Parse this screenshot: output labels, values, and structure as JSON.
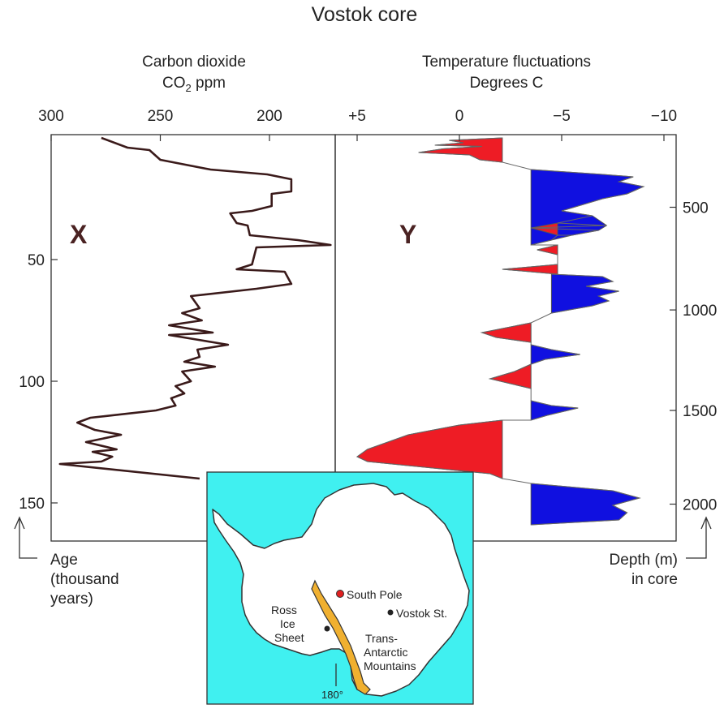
{
  "title": "Vostok core",
  "chart_data": [
    {
      "type": "line",
      "panel_label": "X",
      "xlabel_line1": "Carbon dioxide",
      "xlabel_line2_prefix": "CO",
      "xlabel_line2_sub": "2",
      "xlabel_line2_suffix": " ppm",
      "ylabel_lines": [
        "Age",
        "(thousand",
        "years)"
      ],
      "xlim": [
        300,
        170
      ],
      "ylim": [
        0,
        160
      ],
      "x_ticks": [
        {
          "v": 300,
          "label": "300"
        },
        {
          "v": 250,
          "label": "250"
        },
        {
          "v": 200,
          "label": "200"
        }
      ],
      "y_ticks": [
        {
          "v": 50,
          "label": "50"
        },
        {
          "v": 100,
          "label": "100"
        },
        {
          "v": 150,
          "label": "150"
        }
      ],
      "color": "#3a1a1a",
      "series": [
        {
          "points": [
            [
              277,
              0
            ],
            [
              265,
              4
            ],
            [
              255,
              5
            ],
            [
              250,
              9
            ],
            [
              227,
              13
            ],
            [
              201,
              15
            ],
            [
              190,
              17
            ],
            [
              190,
              22
            ],
            [
              199,
              23
            ],
            [
              199,
              28
            ],
            [
              208,
              30
            ],
            [
              218,
              31
            ],
            [
              215,
              35
            ],
            [
              210,
              36
            ],
            [
              209,
              40
            ],
            [
              187,
              42
            ],
            [
              172,
              44
            ],
            [
              206,
              45
            ],
            [
              208,
              52
            ],
            [
              215,
              54
            ],
            [
              193,
              55
            ],
            [
              190,
              60
            ],
            [
              206,
              62
            ],
            [
              236,
              65
            ],
            [
              232,
              70
            ],
            [
              240,
              72
            ],
            [
              231,
              75
            ],
            [
              246,
              77
            ],
            [
              226,
              80
            ],
            [
              246,
              81
            ],
            [
              219,
              85
            ],
            [
              233,
              87
            ],
            [
              232,
              90
            ],
            [
              239,
              92
            ],
            [
              225,
              94
            ],
            [
              240,
              96
            ],
            [
              236,
              100
            ],
            [
              243,
              102
            ],
            [
              239,
              105
            ],
            [
              245,
              107
            ],
            [
              243,
              110
            ],
            [
              252,
              112
            ],
            [
              282,
              115
            ],
            [
              288,
              117
            ],
            [
              280,
              120
            ],
            [
              268,
              122
            ],
            [
              284,
              125
            ],
            [
              270,
              128
            ],
            [
              281,
              129
            ],
            [
              272,
              131
            ],
            [
              277,
              133
            ],
            [
              296,
              134
            ],
            [
              232,
              140
            ]
          ]
        }
      ]
    },
    {
      "type": "area",
      "panel_label": "Y",
      "xlabel_line1": "Temperature fluctuations",
      "xlabel_line2": "Degrees C",
      "ylabel_lines": [
        "Depth (m)",
        "in core"
      ],
      "xlim": [
        5,
        -10
      ],
      "ylim": [
        0,
        160
      ],
      "x_ticks": [
        {
          "v": 5,
          "label": "+5"
        },
        {
          "v": 0,
          "label": "0"
        },
        {
          "v": -5,
          "label": "−5"
        },
        {
          "v": -10,
          "label": "−10"
        }
      ],
      "y_ticks_depth": [
        {
          "age": 28.5,
          "label": "500"
        },
        {
          "age": 70.7,
          "label": "1000"
        },
        {
          "age": 112.0,
          "label": "1500"
        },
        {
          "age": 150.5,
          "label": "2000"
        }
      ],
      "warm_color": "#ee1c25",
      "cold_color": "#1010e0",
      "segments": [
        {
          "type": "warm",
          "base": -2.1,
          "points": [
            [
              -2.1,
              0
            ],
            [
              0.5,
              1
            ],
            [
              -0.2,
              2
            ],
            [
              1.2,
              3
            ],
            [
              -1.1,
              3.5
            ],
            [
              0.8,
              4.5
            ],
            [
              2.0,
              6
            ],
            [
              -0.5,
              7
            ],
            [
              -1.0,
              9
            ],
            [
              -2.1,
              10
            ]
          ]
        },
        {
          "type": "cold",
          "base": -3.5,
          "points": [
            [
              -3.5,
              13
            ],
            [
              -7.0,
              15
            ],
            [
              -8.5,
              16
            ],
            [
              -7.8,
              18
            ],
            [
              -9.0,
              20
            ],
            [
              -8.2,
              23
            ],
            [
              -7.0,
              25
            ],
            [
              -5.8,
              28
            ],
            [
              -5.0,
              30
            ],
            [
              -6.5,
              32
            ],
            [
              -7.2,
              36
            ],
            [
              -6.8,
              38
            ],
            [
              -5.5,
              40
            ],
            [
              -4.5,
              42
            ],
            [
              -3.5,
              44
            ]
          ]
        },
        {
          "type": "warm",
          "base": -4.8,
          "points": [
            [
              -4.8,
              35
            ],
            [
              -3.5,
              37
            ],
            [
              -4.8,
              40
            ]
          ]
        },
        {
          "type": "warm",
          "base": -4.8,
          "points": [
            [
              -4.8,
              44
            ],
            [
              -3.8,
              46
            ],
            [
              -4.8,
              48
            ]
          ]
        },
        {
          "type": "warm",
          "base": -4.8,
          "points": [
            [
              -4.8,
              52
            ],
            [
              -2.1,
              54
            ],
            [
              -4.8,
              56
            ]
          ]
        },
        {
          "type": "cold",
          "base": -4.5,
          "points": [
            [
              -4.5,
              56
            ],
            [
              -7.0,
              57
            ],
            [
              -7.5,
              59
            ],
            [
              -6.2,
              61
            ],
            [
              -7.8,
              63
            ],
            [
              -6.8,
              65
            ],
            [
              -7.3,
              67
            ],
            [
              -6.5,
              69
            ],
            [
              -4.5,
              72
            ]
          ]
        },
        {
          "type": "warm",
          "base": -3.5,
          "points": [
            [
              -3.5,
              76
            ],
            [
              -1.1,
              80
            ],
            [
              -1.8,
              82
            ],
            [
              -3.5,
              84
            ]
          ]
        },
        {
          "type": "cold",
          "base": -3.5,
          "points": [
            [
              -3.5,
              85
            ],
            [
              -4.5,
              87
            ],
            [
              -5.9,
              89
            ],
            [
              -4.2,
              91
            ],
            [
              -3.5,
              93
            ]
          ]
        },
        {
          "type": "warm",
          "base": -3.5,
          "points": [
            [
              -3.5,
              93
            ],
            [
              -2.7,
              96
            ],
            [
              -1.5,
              99
            ],
            [
              -2.5,
              101
            ],
            [
              -3.5,
              103
            ]
          ]
        },
        {
          "type": "cold",
          "base": -3.5,
          "points": [
            [
              -3.5,
              108
            ],
            [
              -4.5,
              110
            ],
            [
              -5.8,
              111
            ],
            [
              -4.3,
              114
            ],
            [
              -3.5,
              116
            ]
          ]
        },
        {
          "type": "warm",
          "base": -2.1,
          "points": [
            [
              -2.1,
              116
            ],
            [
              0,
              118
            ],
            [
              2.5,
              122
            ],
            [
              3.5,
              125
            ],
            [
              4.5,
              128
            ],
            [
              5.0,
              131
            ],
            [
              4.5,
              133
            ],
            [
              -1.5,
              138
            ],
            [
              -2.1,
              140
            ]
          ]
        },
        {
          "type": "cold",
          "base": -3.5,
          "points": [
            [
              -3.5,
              142
            ],
            [
              -7.5,
              145
            ],
            [
              -8.8,
              148
            ],
            [
              -7.5,
              151
            ],
            [
              -8.2,
              154
            ],
            [
              -7.8,
              157
            ],
            [
              -3.5,
              159
            ]
          ]
        }
      ]
    }
  ],
  "inset_map": {
    "labels": {
      "south_pole": "South Pole",
      "vostok": "Vostok St.",
      "ross_1": "Ross",
      "ross_2": "Ice",
      "ross_3": "Sheet",
      "trans_1": "Trans-",
      "trans_2": "Antarctic",
      "trans_3": "Mountains",
      "meridian": "180°"
    },
    "colors": {
      "ocean": "#40f0f0",
      "land": "#ffffff",
      "mountains": "#f0b030",
      "pole": "#e02020"
    }
  }
}
